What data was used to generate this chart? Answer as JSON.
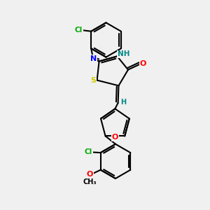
{
  "bg_color": "#f0f0f0",
  "bond_color": "#000000",
  "bond_width": 1.5,
  "atom_colors": {
    "N": "#0000ff",
    "O": "#ff0000",
    "S": "#cccc00",
    "Cl": "#00aa00",
    "H": "#008888",
    "C": "#000000"
  },
  "figsize": [
    3.0,
    3.0
  ],
  "dpi": 100
}
